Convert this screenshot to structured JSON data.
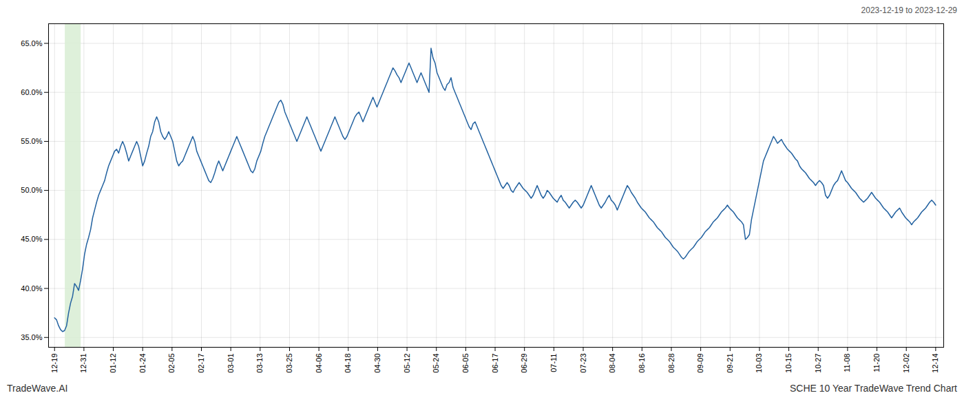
{
  "chart_data": {
    "type": "line",
    "title": "SCHE 10 Year TradeWave Trend Chart",
    "subtitle": "2023-12-19 to 2023-12-29",
    "annotations": [
      "TradeWave.AI"
    ],
    "color": "#2362a0",
    "grid": true,
    "highlight": {
      "x": [
        5.292,
        13.23
      ],
      "color": "#d8edd4"
    },
    "xlim": [
      -3,
      444
    ],
    "xticks": [
      {
        "value": 0,
        "label": "12-19"
      },
      {
        "value": 14.666666666666666,
        "label": "12-31"
      },
      {
        "value": 29.333333333333332,
        "label": "01-12"
      },
      {
        "value": 44,
        "label": "01-24"
      },
      {
        "value": 58.666666666666664,
        "label": "02-05"
      },
      {
        "value": 73.33333333333333,
        "label": "02-17"
      },
      {
        "value": 88,
        "label": "03-01"
      },
      {
        "value": 102.66666666666667,
        "label": "03-13"
      },
      {
        "value": 117.33333333333333,
        "label": "03-25"
      },
      {
        "value": 132,
        "label": "04-06"
      },
      {
        "value": 146.66666666666666,
        "label": "04-18"
      },
      {
        "value": 161.33333333333334,
        "label": "04-30"
      },
      {
        "value": 176,
        "label": "05-12"
      },
      {
        "value": 190.66666666666666,
        "label": "05-24"
      },
      {
        "value": 205.33333333333334,
        "label": "06-05"
      },
      {
        "value": 220,
        "label": "06-17"
      },
      {
        "value": 234.66666666666666,
        "label": "06-29"
      },
      {
        "value": 249.33333333333334,
        "label": "07-11"
      },
      {
        "value": 264,
        "label": "07-23"
      },
      {
        "value": 278.6666666666667,
        "label": "08-04"
      },
      {
        "value": 293.3333333333333,
        "label": "08-16"
      },
      {
        "value": 308,
        "label": "08-28"
      },
      {
        "value": 322.6666666666667,
        "label": "09-09"
      },
      {
        "value": 337.3333333333333,
        "label": "09-21"
      },
      {
        "value": 352,
        "label": "10-03"
      },
      {
        "value": 366.6666666666667,
        "label": "10-15"
      },
      {
        "value": 381.3333333333333,
        "label": "10-27"
      },
      {
        "value": 396,
        "label": "11-08"
      },
      {
        "value": 410.6666666666667,
        "label": "11-20"
      },
      {
        "value": 425.3333333333333,
        "label": "12-02"
      },
      {
        "value": 440,
        "label": "12-14"
      }
    ],
    "ylim": [
      34.0,
      67.0
    ],
    "yticks": [
      {
        "value": 35.0,
        "label": "35.0%"
      },
      {
        "value": 40.0,
        "label": "40.0%"
      },
      {
        "value": 45.0,
        "label": "45.0%"
      },
      {
        "value": 50.0,
        "label": "50.0%"
      },
      {
        "value": 55.0,
        "label": "55.0%"
      },
      {
        "value": 60.0,
        "label": "60.0%"
      },
      {
        "value": 65.0,
        "label": "65.0%"
      }
    ],
    "x": [
      0,
      1,
      2,
      3,
      4,
      5,
      6,
      7,
      8,
      9,
      10,
      11,
      12,
      13,
      14,
      15,
      16,
      17,
      18,
      19,
      20,
      21,
      22,
      23,
      24,
      25,
      26,
      27,
      28,
      29,
      30,
      31,
      32,
      33,
      34,
      35,
      36,
      37,
      38,
      39,
      40,
      41,
      42,
      43,
      44,
      45,
      46,
      47,
      48,
      49,
      50,
      51,
      52,
      53,
      54,
      55,
      56,
      57,
      58,
      59,
      60,
      61,
      62,
      63,
      64,
      65,
      66,
      67,
      68,
      69,
      70,
      71,
      72,
      73,
      74,
      75,
      76,
      77,
      78,
      79,
      80,
      81,
      82,
      83,
      84,
      85,
      86,
      87,
      88,
      89,
      90,
      91,
      92,
      93,
      94,
      95,
      96,
      97,
      98,
      99,
      100,
      101,
      102,
      103,
      104,
      105,
      106,
      107,
      108,
      109,
      110,
      111,
      112,
      113,
      114,
      115,
      116,
      117,
      118,
      119,
      120,
      121,
      122,
      123,
      124,
      125,
      126,
      127,
      128,
      129,
      130,
      131,
      132,
      133,
      134,
      135,
      136,
      137,
      138,
      139,
      140,
      141,
      142,
      143,
      144,
      145,
      146,
      147,
      148,
      149,
      150,
      151,
      152,
      153,
      154,
      155,
      156,
      157,
      158,
      159,
      160,
      161,
      162,
      163,
      164,
      165,
      166,
      167,
      168,
      169,
      170,
      171,
      172,
      173,
      174,
      175,
      176,
      177,
      178,
      179,
      180,
      181,
      182,
      183,
      184,
      185,
      186,
      187,
      188,
      189,
      190,
      191,
      192,
      193,
      194,
      195,
      196,
      197,
      198,
      199,
      200,
      201,
      202,
      203,
      204,
      205,
      206,
      207,
      208,
      209,
      210,
      211,
      212,
      213,
      214,
      215,
      216,
      217,
      218,
      219,
      220,
      221,
      222,
      223,
      224,
      225,
      226,
      227,
      228,
      229,
      230,
      231,
      232,
      233,
      234,
      235,
      236,
      237,
      238,
      239,
      240,
      241,
      242,
      243,
      244,
      245,
      246,
      247,
      248,
      249,
      250,
      251,
      252,
      253,
      254,
      255,
      256,
      257,
      258,
      259,
      260,
      261,
      262,
      263,
      264,
      265,
      266,
      267,
      268,
      269,
      270,
      271,
      272,
      273,
      274,
      275,
      276,
      277,
      278,
      279,
      280,
      281,
      282,
      283,
      284,
      285,
      286,
      287,
      288,
      289,
      290,
      291,
      292,
      293,
      294,
      295,
      296,
      297,
      298,
      299,
      300,
      301,
      302,
      303,
      304,
      305,
      306,
      307,
      308,
      309,
      310,
      311,
      312,
      313,
      314,
      315,
      316,
      317,
      318,
      319,
      320,
      321,
      322,
      323,
      324,
      325,
      326,
      327,
      328,
      329,
      330,
      331,
      332,
      333,
      334,
      335,
      336,
      337,
      338,
      339,
      340,
      341,
      342,
      343,
      344,
      345,
      346,
      347,
      348,
      349,
      350,
      351,
      352,
      353,
      354,
      355,
      356,
      357,
      358,
      359,
      360,
      361,
      362,
      363,
      364,
      365,
      366,
      367,
      368,
      369,
      370,
      371,
      372,
      373,
      374,
      375,
      376,
      377,
      378,
      379,
      380,
      381,
      382,
      383,
      384,
      385,
      386,
      387,
      388,
      389,
      390,
      391,
      392,
      393,
      394,
      395,
      396,
      397,
      398,
      399,
      400,
      401,
      402,
      403,
      404,
      405,
      406,
      407,
      408,
      409,
      410,
      411,
      412,
      413,
      414,
      415,
      416,
      417,
      418,
      419,
      420,
      421,
      422,
      423,
      424,
      425,
      426,
      427,
      428,
      429,
      430,
      431,
      432,
      433,
      434,
      435,
      436,
      437,
      438,
      439,
      440
    ],
    "values": [
      37.0,
      36.8,
      36.2,
      35.8,
      35.6,
      35.7,
      36.2,
      37.5,
      38.5,
      39.2,
      40.5,
      40.2,
      39.8,
      40.8,
      42.0,
      43.5,
      44.5,
      45.2,
      46.0,
      47.2,
      48.0,
      48.8,
      49.5,
      50.0,
      50.5,
      51.0,
      51.8,
      52.5,
      53.0,
      53.5,
      54.0,
      54.2,
      53.8,
      54.5,
      55.0,
      54.5,
      53.8,
      53.0,
      53.5,
      54.0,
      54.5,
      55.0,
      54.5,
      53.5,
      52.5,
      53.0,
      53.8,
      54.5,
      55.5,
      56.0,
      57.0,
      57.5,
      57.0,
      56.0,
      55.5,
      55.2,
      55.5,
      56.0,
      55.5,
      55.0,
      54.0,
      53.0,
      52.5,
      52.8,
      53.0,
      53.5,
      54.0,
      54.5,
      55.0,
      55.5,
      55.0,
      54.0,
      53.5,
      53.0,
      52.5,
      52.0,
      51.5,
      51.0,
      50.8,
      51.2,
      51.8,
      52.5,
      53.0,
      52.5,
      52.0,
      52.5,
      53.0,
      53.5,
      54.0,
      54.5,
      55.0,
      55.5,
      55.0,
      54.5,
      54.0,
      53.5,
      53.0,
      52.5,
      52.0,
      51.8,
      52.2,
      53.0,
      53.5,
      54.0,
      54.8,
      55.5,
      56.0,
      56.5,
      57.0,
      57.5,
      58.0,
      58.5,
      59.0,
      59.2,
      58.8,
      58.0,
      57.5,
      57.0,
      56.5,
      56.0,
      55.5,
      55.0,
      55.5,
      56.0,
      56.5,
      57.0,
      57.5,
      57.0,
      56.5,
      56.0,
      55.5,
      55.0,
      54.5,
      54.0,
      54.5,
      55.0,
      55.5,
      56.0,
      56.5,
      57.0,
      57.5,
      57.0,
      56.5,
      56.0,
      55.5,
      55.2,
      55.5,
      56.0,
      56.5,
      57.0,
      57.5,
      57.8,
      58.0,
      57.5,
      57.0,
      57.5,
      58.0,
      58.5,
      59.0,
      59.5,
      59.0,
      58.5,
      59.0,
      59.5,
      60.0,
      60.5,
      61.0,
      61.5,
      62.0,
      62.5,
      62.2,
      61.8,
      61.5,
      61.0,
      61.5,
      62.0,
      62.5,
      63.0,
      62.5,
      62.0,
      61.5,
      61.0,
      61.5,
      62.0,
      61.5,
      61.0,
      60.5,
      60.0,
      64.5,
      63.5,
      63.0,
      62.0,
      61.5,
      61.0,
      60.5,
      60.2,
      60.8,
      61.0,
      61.5,
      60.5,
      60.0,
      59.5,
      59.0,
      58.5,
      58.0,
      57.5,
      57.0,
      56.5,
      56.2,
      56.8,
      57.0,
      56.5,
      56.0,
      55.5,
      55.0,
      54.5,
      54.0,
      53.5,
      53.0,
      52.5,
      52.0,
      51.5,
      51.0,
      50.5,
      50.2,
      50.5,
      50.8,
      50.5,
      50.0,
      49.8,
      50.2,
      50.5,
      50.8,
      50.5,
      50.2,
      50.0,
      49.8,
      49.5,
      49.2,
      49.5,
      50.0,
      50.5,
      50.0,
      49.5,
      49.2,
      49.5,
      50.0,
      49.8,
      49.5,
      49.2,
      49.0,
      48.8,
      49.2,
      49.5,
      49.0,
      48.8,
      48.5,
      48.2,
      48.5,
      48.8,
      49.0,
      48.8,
      48.5,
      48.2,
      48.5,
      49.0,
      49.5,
      50.0,
      50.5,
      50.0,
      49.5,
      49.0,
      48.5,
      48.2,
      48.5,
      48.8,
      49.2,
      49.5,
      49.0,
      48.8,
      48.5,
      48.0,
      48.5,
      49.0,
      49.5,
      50.0,
      50.5,
      50.2,
      49.8,
      49.5,
      49.2,
      48.8,
      48.5,
      48.2,
      48.0,
      47.8,
      47.5,
      47.2,
      47.0,
      46.8,
      46.5,
      46.2,
      46.0,
      45.8,
      45.5,
      45.2,
      45.0,
      44.8,
      44.5,
      44.2,
      44.0,
      43.8,
      43.5,
      43.2,
      43.0,
      43.2,
      43.5,
      43.8,
      44.0,
      44.2,
      44.5,
      44.8,
      45.0,
      45.2,
      45.5,
      45.8,
      46.0,
      46.2,
      46.5,
      46.8,
      47.0,
      47.2,
      47.5,
      47.8,
      48.0,
      48.2,
      48.5,
      48.2,
      48.0,
      47.8,
      47.5,
      47.2,
      47.0,
      46.8,
      46.5,
      45.0,
      45.2,
      45.5,
      47.0,
      48.0,
      49.0,
      50.0,
      51.0,
      52.0,
      53.0,
      53.5,
      54.0,
      54.5,
      55.0,
      55.5,
      55.2,
      54.8,
      55.0,
      55.2,
      54.8,
      54.5,
      54.2,
      54.0,
      53.8,
      53.5,
      53.2,
      53.0,
      52.5,
      52.2,
      52.0,
      51.8,
      51.5,
      51.2,
      51.0,
      50.8,
      50.5,
      50.8,
      51.0,
      50.8,
      50.5,
      49.5,
      49.2,
      49.5,
      50.0,
      50.5,
      50.8,
      51.0,
      51.5,
      52.0,
      51.5,
      51.0,
      50.8,
      50.5,
      50.2,
      50.0,
      49.8,
      49.5,
      49.2,
      49.0,
      48.8,
      49.0,
      49.2,
      49.5,
      49.8,
      49.5,
      49.2,
      49.0,
      48.8,
      48.5,
      48.2,
      48.0,
      47.8,
      47.5,
      47.2,
      47.5,
      47.8,
      48.0,
      48.2,
      47.8,
      47.5,
      47.2,
      47.0,
      46.8,
      46.5,
      46.8,
      47.0,
      47.2,
      47.5,
      47.8,
      48.0,
      48.2,
      48.5,
      48.8,
      49.0,
      48.8,
      48.5
    ]
  }
}
